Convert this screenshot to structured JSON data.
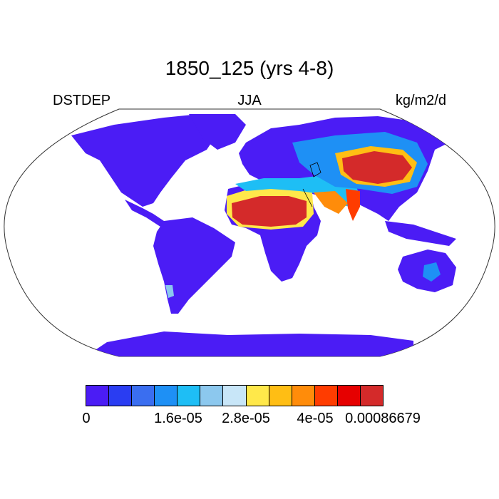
{
  "title": "1850_125 (yrs 4-8)",
  "label_left": "DSTDEP",
  "label_center": "JJA",
  "label_right": "kg/m2/d",
  "colorbar": {
    "colors": [
      "#4b1cf5",
      "#2a3df2",
      "#3a6ef0",
      "#1e90f5",
      "#1ebef5",
      "#8cc8ee",
      "#c8e6f8",
      "#ffe84a",
      "#ffbe14",
      "#ff8c0a",
      "#ff3c00",
      "#e60000",
      "#d42a2a"
    ],
    "tick_labels": [
      "0",
      "1.6e-05",
      "2.8e-05",
      "4e-05",
      "0.00086679"
    ]
  },
  "map": {
    "projection": "Robinson",
    "variable": "DSTDEP",
    "season": "JJA",
    "units": "kg/m2/d",
    "background_color": "#4b1cf5",
    "high_regions": [
      "Sahara",
      "Arabian Peninsula",
      "Central Asia (Taklamakan/Gobi)",
      "Iran",
      "Thar",
      "Australia interior"
    ]
  }
}
